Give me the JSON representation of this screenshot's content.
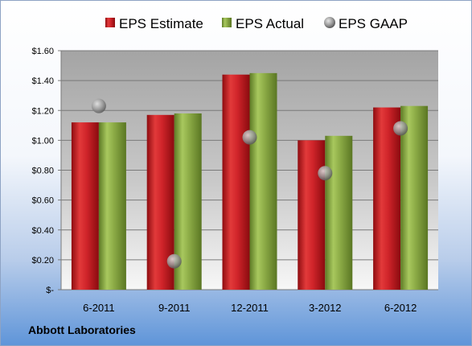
{
  "company": "Abbott Laboratories",
  "colors": {
    "estimate": "#c0131a",
    "actual": "#7f9f3a",
    "gaap": "#9a9a9a"
  },
  "chart_data": {
    "type": "bar",
    "categories": [
      "6-2011",
      "9-2011",
      "12-2011",
      "3-2012",
      "6-2012"
    ],
    "series": [
      {
        "name": "EPS Estimate",
        "kind": "bar",
        "values": [
          1.12,
          1.17,
          1.44,
          1.0,
          1.22
        ]
      },
      {
        "name": "EPS Actual",
        "kind": "bar",
        "values": [
          1.12,
          1.18,
          1.45,
          1.03,
          1.23
        ]
      },
      {
        "name": "EPS GAAP",
        "kind": "scatter",
        "values": [
          1.23,
          0.19,
          1.02,
          0.78,
          1.08
        ]
      }
    ],
    "ylim": [
      0,
      1.6
    ],
    "yticks": [
      0,
      0.2,
      0.4,
      0.6,
      0.8,
      1.0,
      1.2,
      1.4,
      1.6
    ],
    "ytick_labels": [
      "$-",
      "$0.20",
      "$0.40",
      "$0.60",
      "$0.80",
      "$1.00",
      "$1.20",
      "$1.40",
      "$1.60"
    ],
    "legend": "top",
    "grid": true
  }
}
